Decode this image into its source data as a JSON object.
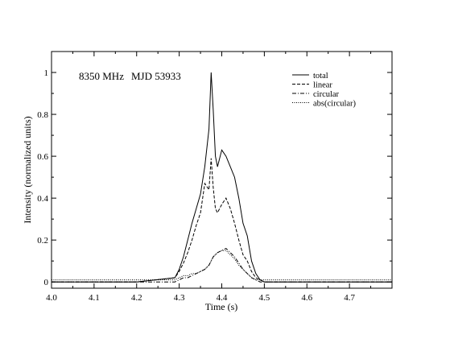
{
  "chart_data": {
    "type": "line",
    "title": "",
    "annotations": [
      "8350 MHz",
      "MJD 53933"
    ],
    "xlabel": "Time (s)",
    "ylabel": "Intensity (normalized units)",
    "xlim": [
      4.0,
      4.8
    ],
    "ylim": [
      -0.03,
      1.1
    ],
    "x_ticks": [
      4.0,
      4.1,
      4.2,
      4.3,
      4.4,
      4.5,
      4.6,
      4.7
    ],
    "x_tick_labels": [
      "4.0",
      "4.1",
      "4.2",
      "4.3",
      "4.4",
      "4.5",
      "4.6",
      "4.7"
    ],
    "y_ticks": [
      0,
      0.2,
      0.4,
      0.6,
      0.8,
      1
    ],
    "y_tick_labels": [
      "0",
      "0.2",
      "0.4",
      "0.6",
      "0.8",
      "1"
    ],
    "grid": false,
    "legend_position": "top-right",
    "x": [
      4.0,
      4.2,
      4.29,
      4.3,
      4.31,
      4.32,
      4.33,
      4.34,
      4.35,
      4.36,
      4.37,
      4.375,
      4.38,
      4.385,
      4.39,
      4.4,
      4.41,
      4.42,
      4.43,
      4.44,
      4.45,
      4.46,
      4.47,
      4.48,
      4.49,
      4.5,
      4.8
    ],
    "series": [
      {
        "name": "total",
        "style": "solid",
        "values": [
          0.0,
          0.0,
          0.02,
          0.06,
          0.12,
          0.2,
          0.28,
          0.35,
          0.42,
          0.55,
          0.73,
          1.0,
          0.82,
          0.6,
          0.55,
          0.63,
          0.6,
          0.55,
          0.5,
          0.4,
          0.28,
          0.22,
          0.1,
          0.04,
          0.01,
          0.0,
          0.0
        ]
      },
      {
        "name": "linear",
        "style": "dashed",
        "values": [
          0.0,
          0.0,
          0.02,
          0.05,
          0.09,
          0.14,
          0.2,
          0.27,
          0.33,
          0.47,
          0.44,
          0.59,
          0.45,
          0.35,
          0.33,
          0.37,
          0.4,
          0.35,
          0.28,
          0.2,
          0.13,
          0.1,
          0.05,
          0.02,
          0.01,
          0.0,
          0.0
        ]
      },
      {
        "name": "circular",
        "style": "dashdot",
        "values": [
          0.0,
          0.0,
          0.0,
          0.01,
          0.02,
          0.02,
          0.03,
          0.04,
          0.05,
          0.06,
          0.08,
          0.1,
          0.12,
          0.13,
          0.14,
          0.15,
          0.16,
          0.14,
          0.12,
          0.09,
          0.06,
          0.04,
          0.02,
          0.01,
          0.0,
          0.0,
          0.0
        ]
      },
      {
        "name": "abs(circular)",
        "style": "dotted",
        "values": [
          0.01,
          0.01,
          0.01,
          0.02,
          0.03,
          0.03,
          0.04,
          0.04,
          0.05,
          0.06,
          0.08,
          0.1,
          0.12,
          0.13,
          0.14,
          0.15,
          0.15,
          0.13,
          0.11,
          0.08,
          0.06,
          0.04,
          0.02,
          0.01,
          0.01,
          0.01,
          0.01
        ]
      }
    ]
  }
}
